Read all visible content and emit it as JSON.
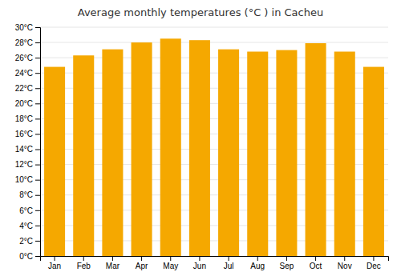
{
  "chart_data": {
    "type": "bar",
    "title": "Average monthly temperatures (°C ) in Cacheu",
    "categories": [
      "Jan",
      "Feb",
      "Mar",
      "Apr",
      "May",
      "Jun",
      "Jul",
      "Aug",
      "Sep",
      "Oct",
      "Nov",
      "Dec"
    ],
    "values": [
      24.8,
      26.3,
      27.1,
      28.0,
      28.5,
      28.3,
      27.1,
      26.8,
      27.0,
      27.9,
      26.8,
      24.8
    ],
    "color": "#F5A800",
    "ylim": [
      0,
      30
    ],
    "yticks": [
      {
        "value": 0,
        "label": "0°C"
      },
      {
        "value": 2,
        "label": "2°C"
      },
      {
        "value": 4,
        "label": "4°C"
      },
      {
        "value": 6,
        "label": "6°C"
      },
      {
        "value": 8,
        "label": "8°C"
      },
      {
        "value": 10,
        "label": "10°C"
      },
      {
        "value": 12,
        "label": "12°C"
      },
      {
        "value": 14,
        "label": "14°C"
      },
      {
        "value": 16,
        "label": "16°C"
      },
      {
        "value": 18,
        "label": "18°C"
      },
      {
        "value": 20,
        "label": "20°C"
      },
      {
        "value": 22,
        "label": "22°C"
      },
      {
        "value": 24,
        "label": "24°C"
      },
      {
        "value": 26,
        "label": "26°C"
      },
      {
        "value": 28,
        "label": "28°C"
      },
      {
        "value": 30,
        "label": "30°C"
      }
    ],
    "grid": true
  }
}
